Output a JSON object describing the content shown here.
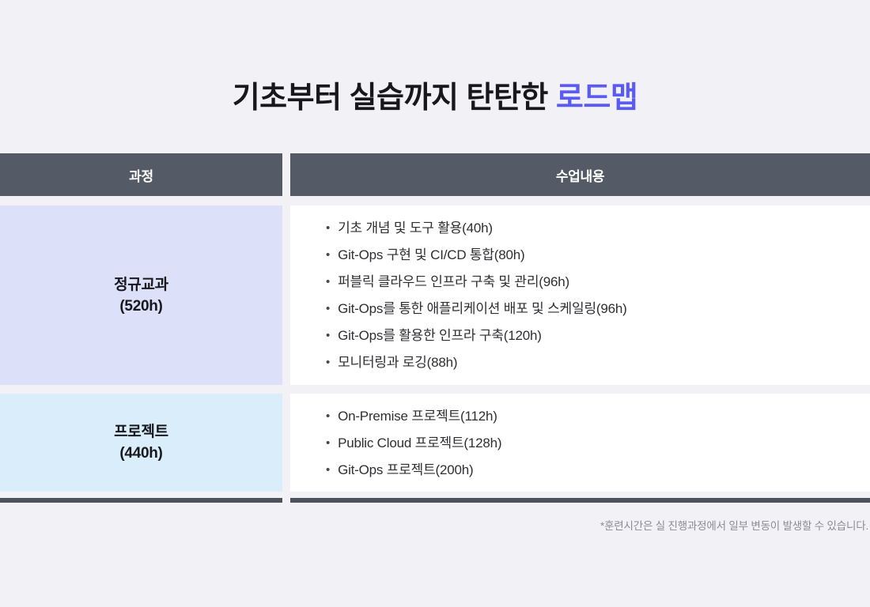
{
  "title": {
    "prefix": "기초부터 실습까지 탄탄한 ",
    "highlight": "로드맵"
  },
  "glyphs": {
    "bullet": "•"
  },
  "colors": {
    "page_background": "#f2f2f6",
    "header_bg": "#555b66",
    "header_text": "#ffffff",
    "row1_bg": "#dce0f9",
    "row2_bg": "#d9edfb",
    "content_bg": "#ffffff",
    "title_text": "#17171c",
    "title_highlight": "#5a5bf2",
    "body_text": "#2e2e33",
    "bottom_bar": "#4d535d",
    "footnote_text": "#8b8b93"
  },
  "table": {
    "headers": [
      {
        "label": "과정"
      },
      {
        "label": "수업내용"
      }
    ],
    "rows": [
      {
        "course": "정규교과",
        "hours": "(520h)",
        "items": [
          "기초 개념 및 도구 활용(40h)",
          "Git-Ops 구현 및 CI/CD 통합(80h)",
          "퍼블릭 클라우드 인프라 구축 및 관리(96h)",
          "Git-Ops를 통한 애플리케이션 배포 및 스케일링(96h)",
          "Git-Ops를 활용한 인프라 구축(120h)",
          "모니터링과 로깅(88h)"
        ]
      },
      {
        "course": "프로젝트",
        "hours": "(440h)",
        "items": [
          "On-Premise 프로젝트(112h)",
          "Public Cloud 프로젝트(128h)",
          "Git-Ops 프로젝트(200h)"
        ]
      }
    ]
  },
  "footnote": "*훈련시간은 실 진행과정에서 일부 변동이 발생할 수 있습니다."
}
